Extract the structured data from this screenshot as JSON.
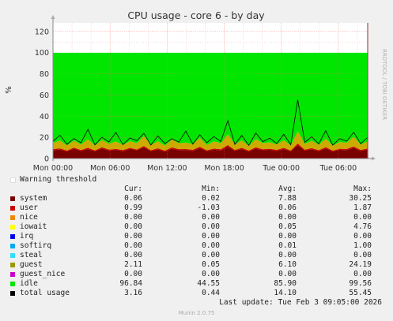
{
  "chart_data": {
    "type": "area",
    "title": "CPU usage - core 6 - by day",
    "ylabel": "%",
    "side_label": "RRDTOOL / TOBI OETIKER",
    "ylim": [
      0,
      128
    ],
    "yticks": [
      0,
      20,
      40,
      60,
      80,
      100,
      120
    ],
    "xlim": [
      "Mon 00:00",
      "Tue 09:05"
    ],
    "xticks": [
      "Mon 00:00",
      "Mon 06:00",
      "Mon 12:00",
      "Mon 18:00",
      "Tue 00:00",
      "Tue 06:00"
    ],
    "x_hours": [
      0,
      6,
      12,
      18,
      24,
      30
    ],
    "series_stack": [
      {
        "name": "system",
        "color": "#7a0000",
        "values": [
          7.9,
          8.4,
          6.7,
          9.2,
          7.1,
          8.8,
          6.9,
          9.6,
          7.4,
          8.2,
          6.8,
          9.1,
          7.6,
          10.4,
          7.0,
          8.6,
          6.5,
          9.3,
          7.8,
          8.1,
          7.2,
          9.8,
          6.9,
          8.4,
          7.5,
          11.2,
          7.3,
          8.9,
          6.6,
          9.4,
          7.7,
          8.3,
          7.1,
          9.0,
          6.8,
          12.6,
          7.4,
          8.7,
          7.0,
          9.5,
          6.7,
          8.2,
          7.9,
          10.1,
          7.2,
          8.5
        ]
      },
      {
        "name": "user",
        "color": "#cc0000",
        "values": [
          0.9,
          1.2,
          0.8,
          1.1,
          0.9,
          1.3,
          0.7,
          1.0,
          1.1,
          0.8,
          1.2,
          0.9,
          1.0,
          1.4,
          0.8,
          1.1,
          0.9,
          1.2,
          1.0,
          0.8,
          1.1,
          1.3,
          0.9,
          1.0,
          1.2,
          1.5,
          0.8,
          1.1,
          0.9,
          1.2,
          1.0,
          0.9,
          1.1,
          1.0,
          0.8,
          1.6,
          1.0,
          1.1,
          0.9,
          1.2,
          0.8,
          1.0,
          1.1,
          1.3,
          0.9,
          1.0
        ]
      },
      {
        "name": "guest",
        "color": "#ccaa00",
        "values": [
          5.8,
          7.4,
          4.9,
          6.6,
          5.2,
          8.1,
          4.6,
          6.9,
          5.5,
          7.2,
          4.8,
          6.4,
          5.9,
          9.3,
          5.0,
          6.7,
          4.7,
          7.5,
          5.6,
          6.2,
          5.1,
          8.4,
          4.9,
          6.8,
          5.7,
          10.2,
          5.3,
          7.0,
          4.5,
          7.8,
          5.8,
          6.1,
          5.2,
          7.3,
          4.8,
          11.5,
          5.4,
          6.9,
          5.0,
          8.0,
          4.6,
          6.3,
          5.9,
          9.1,
          5.1,
          6.6
        ]
      },
      {
        "name": "idle",
        "color": "#00e600",
        "values": [
          85.4,
          83.0,
          87.6,
          83.1,
          86.8,
          81.8,
          87.8,
          82.5,
          86.0,
          83.8,
          87.2,
          83.6,
          85.5,
          78.9,
          87.2,
          83.6,
          87.9,
          82.0,
          85.6,
          84.9,
          86.6,
          80.5,
          87.3,
          83.8,
          85.6,
          77.1,
          86.6,
          83.0,
          88.0,
          81.6,
          85.5,
          84.7,
          86.6,
          82.7,
          87.6,
          74.3,
          86.2,
          83.3,
          87.1,
          81.3,
          87.9,
          84.5,
          85.1,
          79.5,
          86.8,
          83.9
        ]
      },
      {
        "name": "total usage",
        "color": "#000000",
        "values": [
          16.2,
          22.0,
          13.4,
          18.9,
          14.8,
          27.5,
          12.9,
          20.1,
          15.7,
          24.6,
          13.1,
          19.4,
          16.8,
          23.7,
          12.7,
          21.3,
          14.2,
          18.6,
          15.5,
          25.9,
          13.6,
          22.4,
          14.9,
          20.7,
          16.1,
          35.8,
          13.3,
          21.8,
          12.4,
          24.1,
          15.9,
          19.2,
          14.1,
          22.9,
          13.0,
          55.4,
          15.3,
          20.5,
          13.8,
          26.3,
          12.6,
          18.8,
          16.4,
          24.8,
          14.0,
          19.9
        ]
      }
    ],
    "grid": true,
    "warning": {
      "value": 100,
      "color": "#ff0000"
    }
  },
  "legend": {
    "warning_label": "Warning threshold",
    "headers": {
      "cur": "Cur:",
      "min": "Min:",
      "avg": "Avg:",
      "max": "Max:"
    },
    "rows": [
      {
        "name": "system",
        "color": "#7a0000",
        "cur": "0.06",
        "min": "0.02",
        "avg": "7.88",
        "max": "30.25"
      },
      {
        "name": "user",
        "color": "#cc0000",
        "cur": "0.99",
        "min": "-1.03",
        "avg": "0.06",
        "max": "1.87"
      },
      {
        "name": "nice",
        "color": "#ee8800",
        "cur": "0.00",
        "min": "0.00",
        "avg": "0.00",
        "max": "0.00"
      },
      {
        "name": "iowait",
        "color": "#ffff00",
        "cur": "0.00",
        "min": "0.00",
        "avg": "0.05",
        "max": "4.76"
      },
      {
        "name": "irq",
        "color": "#0000ee",
        "cur": "0.00",
        "min": "0.00",
        "avg": "0.00",
        "max": "0.00"
      },
      {
        "name": "softirq",
        "color": "#00aaee",
        "cur": "0.00",
        "min": "0.00",
        "avg": "0.01",
        "max": "1.00"
      },
      {
        "name": "steal",
        "color": "#33ddff",
        "cur": "0.00",
        "min": "0.00",
        "avg": "0.00",
        "max": "0.00"
      },
      {
        "name": "guest",
        "color": "#999900",
        "cur": "2.11",
        "min": "0.05",
        "avg": "6.10",
        "max": "24.19"
      },
      {
        "name": "guest_nice",
        "color": "#cc00cc",
        "cur": "0.00",
        "min": "0.00",
        "avg": "0.00",
        "max": "0.00"
      },
      {
        "name": "idle",
        "color": "#00e600",
        "cur": "96.84",
        "min": "44.55",
        "avg": "85.90",
        "max": "99.56"
      },
      {
        "name": "total usage",
        "color": "#000000",
        "cur": "3.16",
        "min": "0.44",
        "avg": "14.10",
        "max": "55.45"
      }
    ],
    "last_update": "Last update: Tue Feb  3 09:05:00 2026",
    "footer": "Munin 2.0.75"
  }
}
